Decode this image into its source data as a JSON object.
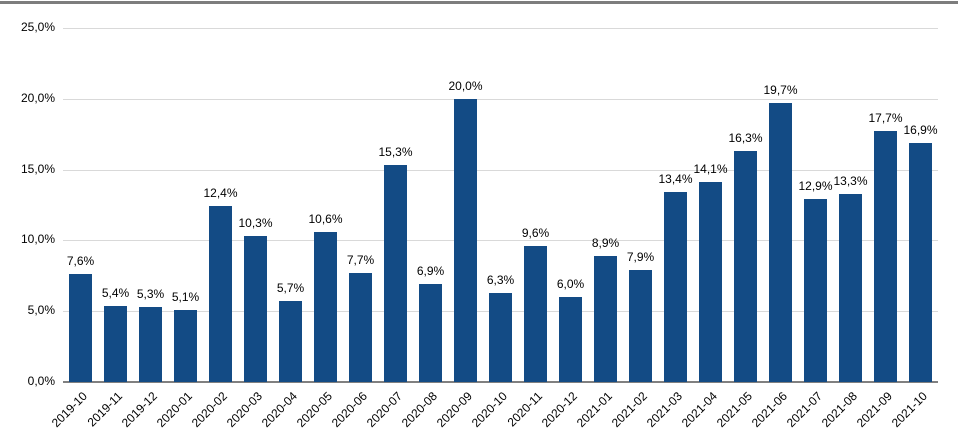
{
  "page": {
    "background_color": "#ffffff",
    "top_divider_color": "#7d7d7d"
  },
  "chart_data": {
    "type": "bar",
    "title": "",
    "xlabel": "",
    "ylabel": "",
    "legend": "none",
    "grid": true,
    "ylim": [
      0,
      25
    ],
    "bar_color": "#134b85",
    "gridline_color": "#d9d9d9",
    "axis_line_color": "#808080",
    "text_color": "#000000",
    "yticks": [
      {
        "value": 0,
        "label": "0,0%"
      },
      {
        "value": 5,
        "label": "5,0%"
      },
      {
        "value": 10,
        "label": "10,0%"
      },
      {
        "value": 15,
        "label": "15,0%"
      },
      {
        "value": 20,
        "label": "20,0%"
      },
      {
        "value": 25,
        "label": "25,0%"
      }
    ],
    "categories": [
      "2019-10",
      "2019-11",
      "2019-12",
      "2020-01",
      "2020-02",
      "2020-03",
      "2020-04",
      "2020-05",
      "2020-06",
      "2020-07",
      "2020-08",
      "2020-09",
      "2020-10",
      "2020-11",
      "2020-12",
      "2021-01",
      "2021-02",
      "2021-03",
      "2021-04",
      "2021-05",
      "2021-06",
      "2021-07",
      "2021-08",
      "2021-09",
      "2021-10"
    ],
    "values": [
      7.6,
      5.4,
      5.3,
      5.1,
      12.4,
      10.3,
      5.7,
      10.6,
      7.7,
      15.3,
      6.9,
      20.0,
      6.3,
      9.6,
      6.0,
      8.9,
      7.9,
      13.4,
      14.1,
      16.3,
      19.7,
      12.9,
      13.3,
      17.7,
      16.9
    ],
    "labels": [
      "7,6%",
      "5,4%",
      "5,3%",
      "5,1%",
      "12,4%",
      "10,3%",
      "5,7%",
      "10,6%",
      "7,7%",
      "15,3%",
      "6,9%",
      "20,0%",
      "6,3%",
      "9,6%",
      "6,0%",
      "8,9%",
      "7,9%",
      "13,4%",
      "14,1%",
      "16,3%",
      "19,7%",
      "12,9%",
      "13,3%",
      "17,7%",
      "16,9%"
    ]
  }
}
